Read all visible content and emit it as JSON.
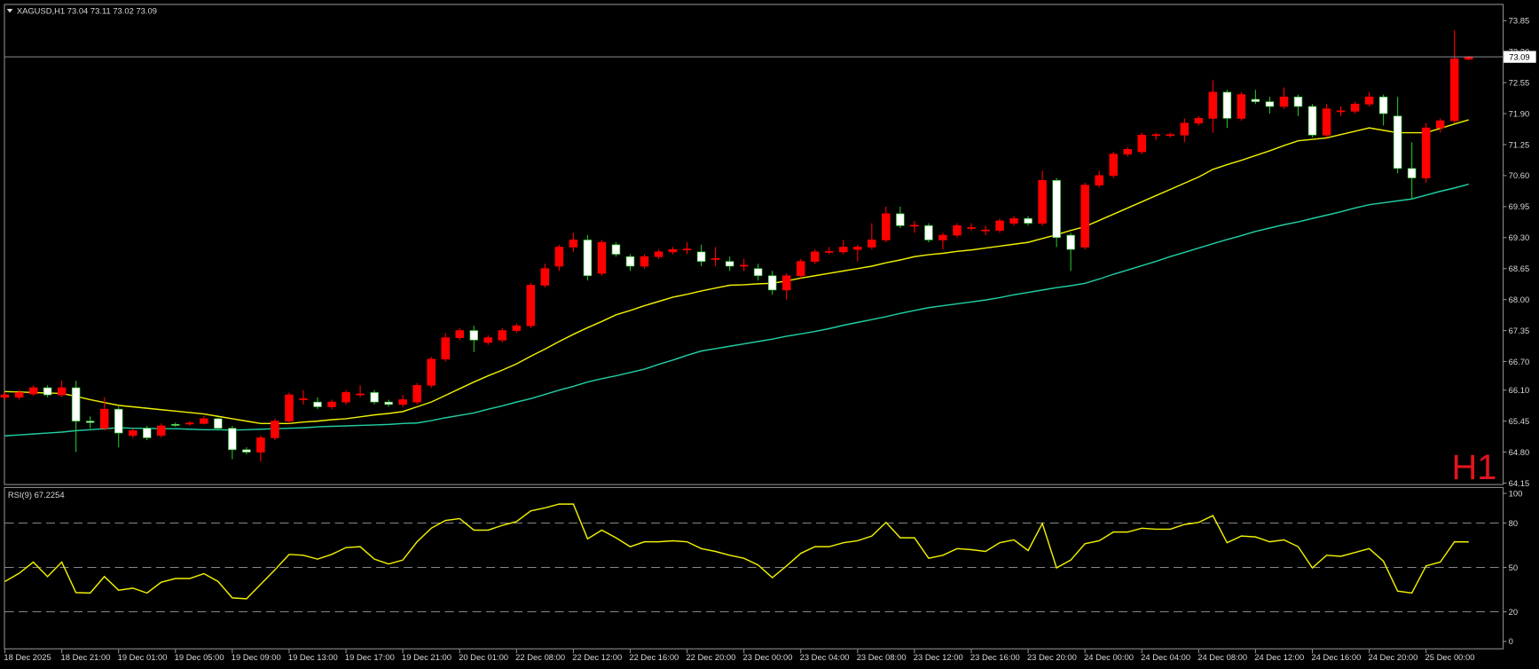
{
  "chart_data": [
    {
      "type": "candlestick",
      "title": "XAGUSD,H1  73.04 73.11 73.02 73.09",
      "timeframe_label": "H1",
      "categories": [
        "18 Dec 2025",
        null,
        null,
        null,
        "18 Dec 21:00",
        null,
        null,
        null,
        "19 Dec 01:00",
        null,
        null,
        null,
        "19 Dec 05:00",
        null,
        null,
        null,
        "19 Dec 09:00",
        null,
        null,
        null,
        "19 Dec 13:00",
        null,
        null,
        null,
        "19 Dec 17:00",
        null,
        null,
        null,
        "19 Dec 21:00",
        null,
        null,
        null,
        "20 Dec 01:00",
        null,
        null,
        null,
        "22 Dec 08:00",
        null,
        null,
        null,
        "22 Dec 12:00",
        null,
        null,
        null,
        "22 Dec 16:00",
        null,
        null,
        null,
        "22 Dec 20:00",
        null,
        null,
        null,
        "23 Dec 00:00",
        null,
        null,
        null,
        "23 Dec 04:00",
        null,
        null,
        null,
        "23 Dec 08:00",
        null,
        null,
        null,
        "23 Dec 12:00",
        null,
        null,
        null,
        "23 Dec 16:00",
        null,
        null,
        null,
        "23 Dec 20:00",
        null,
        null,
        null,
        "24 Dec 00:00",
        null,
        null,
        null,
        "24 Dec 04:00",
        null,
        null,
        null,
        "24 Dec 08:00",
        null,
        null,
        null,
        "24 Dec 12:00",
        null,
        null,
        null,
        "24 Dec 16:00",
        null,
        null,
        null,
        "24 Dec 20:00",
        null,
        null,
        null,
        "25 Dec 00:00",
        null,
        null,
        null
      ],
      "open": [
        65.95,
        65.95,
        66.02,
        66.15,
        66.0,
        66.15,
        65.45,
        65.3,
        65.7,
        65.15,
        65.3,
        65.15,
        65.38,
        65.4,
        65.4,
        65.5,
        65.3,
        64.85,
        64.8,
        65.1,
        65.45,
        65.9,
        65.85,
        65.75,
        65.85,
        66.0,
        66.05,
        65.85,
        65.8,
        65.85,
        66.2,
        66.75,
        67.2,
        67.35,
        67.1,
        67.15,
        67.35,
        67.45,
        68.3,
        68.7,
        69.1,
        69.25,
        68.55,
        69.15,
        68.9,
        68.7,
        68.9,
        69.0,
        69.04,
        69.0,
        68.84,
        68.8,
        68.7,
        68.65,
        68.5,
        68.2,
        68.5,
        68.8,
        68.99,
        69.0,
        69.05,
        69.1,
        69.25,
        69.8,
        69.54,
        69.55,
        69.25,
        69.35,
        69.49,
        69.44,
        69.45,
        69.6,
        69.7,
        69.6,
        70.5,
        69.35,
        69.1,
        70.4,
        70.6,
        71.05,
        71.1,
        71.44,
        71.44,
        71.45,
        71.7,
        71.8,
        72.35,
        71.8,
        72.2,
        72.15,
        72.05,
        72.25,
        72.05,
        71.45,
        71.94,
        71.95,
        72.1,
        72.25,
        71.85,
        70.75,
        70.55,
        71.6,
        71.75,
        73.04
      ],
      "high": [
        66.05,
        66.1,
        66.2,
        66.2,
        66.3,
        66.3,
        65.55,
        65.95,
        65.75,
        65.3,
        65.35,
        65.4,
        65.42,
        65.45,
        65.55,
        65.52,
        65.35,
        64.9,
        65.15,
        65.5,
        66.05,
        66.1,
        65.95,
        65.9,
        66.1,
        66.2,
        66.1,
        65.9,
        66.0,
        66.25,
        66.8,
        67.3,
        67.4,
        67.45,
        67.25,
        67.4,
        67.5,
        68.35,
        68.75,
        69.15,
        69.4,
        69.35,
        69.25,
        69.2,
        68.95,
        68.95,
        69.05,
        69.1,
        69.2,
        69.15,
        69.1,
        68.9,
        68.85,
        68.75,
        68.6,
        68.55,
        68.85,
        69.05,
        69.1,
        69.25,
        69.15,
        69.6,
        69.95,
        69.95,
        69.65,
        69.6,
        69.4,
        69.6,
        69.6,
        69.55,
        69.7,
        69.75,
        69.75,
        70.7,
        70.55,
        69.4,
        70.45,
        70.7,
        71.1,
        71.2,
        71.5,
        71.5,
        71.5,
        71.8,
        71.85,
        72.6,
        72.4,
        72.35,
        72.4,
        72.25,
        72.45,
        72.3,
        72.1,
        72.1,
        72.05,
        72.15,
        72.35,
        72.3,
        72.25,
        71.3,
        71.7,
        71.8,
        73.65,
        73.11
      ],
      "low": [
        65.9,
        65.9,
        65.98,
        65.95,
        65.95,
        64.8,
        65.3,
        65.25,
        64.9,
        65.1,
        65.05,
        65.1,
        65.33,
        65.35,
        65.38,
        65.25,
        64.65,
        64.75,
        64.6,
        65.05,
        65.4,
        65.8,
        65.7,
        65.7,
        65.8,
        65.95,
        65.8,
        65.75,
        65.75,
        65.8,
        66.15,
        66.7,
        67.15,
        66.9,
        67.05,
        67.1,
        67.3,
        67.4,
        68.25,
        68.6,
        69.0,
        68.4,
        68.5,
        68.9,
        68.6,
        68.65,
        68.85,
        68.95,
        68.95,
        68.7,
        68.7,
        68.6,
        68.6,
        68.4,
        68.1,
        68.0,
        68.45,
        68.75,
        68.95,
        68.95,
        68.8,
        69.05,
        69.2,
        69.5,
        69.4,
        69.2,
        69.05,
        69.3,
        69.45,
        69.35,
        69.4,
        69.55,
        69.55,
        69.55,
        69.1,
        68.6,
        69.05,
        70.35,
        70.55,
        71.0,
        71.05,
        71.35,
        71.4,
        71.3,
        71.65,
        71.5,
        71.6,
        71.75,
        72.1,
        71.9,
        72.0,
        71.85,
        71.4,
        71.4,
        71.85,
        71.9,
        72.05,
        71.65,
        70.65,
        70.1,
        70.45,
        71.5,
        71.7,
        73.02
      ],
      "close": [
        66.0,
        66.05,
        66.15,
        66.0,
        66.15,
        65.45,
        65.42,
        65.7,
        65.2,
        65.25,
        65.1,
        65.35,
        65.37,
        65.41,
        65.5,
        65.3,
        64.85,
        64.8,
        65.1,
        65.45,
        66.0,
        65.92,
        65.75,
        65.85,
        66.05,
        66.02,
        65.85,
        65.8,
        65.9,
        66.2,
        66.75,
        67.2,
        67.35,
        67.15,
        67.2,
        67.35,
        67.45,
        68.3,
        68.65,
        69.1,
        69.25,
        68.5,
        69.2,
        68.95,
        68.7,
        68.9,
        69.0,
        69.05,
        69.06,
        68.8,
        68.86,
        68.7,
        68.72,
        68.5,
        68.2,
        68.5,
        68.8,
        69.0,
        69.01,
        69.1,
        69.1,
        69.25,
        69.8,
        69.55,
        69.56,
        69.25,
        69.35,
        69.55,
        69.51,
        69.46,
        69.65,
        69.7,
        69.6,
        70.5,
        69.3,
        69.05,
        70.4,
        70.6,
        71.05,
        71.15,
        71.45,
        71.46,
        71.46,
        71.7,
        71.8,
        72.35,
        71.8,
        72.3,
        72.15,
        72.05,
        72.25,
        72.05,
        71.45,
        72.0,
        71.96,
        72.1,
        72.25,
        71.9,
        70.75,
        70.55,
        71.6,
        71.75,
        73.05,
        73.09
      ],
      "lines": [
        {
          "color": "#f0f000",
          "values": [
            66.07,
            66.06,
            66.05,
            66.04,
            66.03,
            65.97,
            65.9,
            65.84,
            65.78,
            65.75,
            65.72,
            65.69,
            65.66,
            65.63,
            65.6,
            65.55,
            65.5,
            65.45,
            65.4,
            65.4,
            65.4,
            65.43,
            65.45,
            65.48,
            65.5,
            65.54,
            65.58,
            65.61,
            65.65,
            65.75,
            65.85,
            65.99,
            66.13,
            66.27,
            66.4,
            66.52,
            66.65,
            66.81,
            66.96,
            67.12,
            67.27,
            67.41,
            67.54,
            67.68,
            67.77,
            67.87,
            67.96,
            68.05,
            68.11,
            68.18,
            68.24,
            68.3,
            68.31,
            68.33,
            68.34,
            68.39,
            68.45,
            68.5,
            68.55,
            68.6,
            68.65,
            68.7,
            68.77,
            68.83,
            68.9,
            68.94,
            68.97,
            69.01,
            69.04,
            69.08,
            69.12,
            69.16,
            69.2,
            69.28,
            69.36,
            69.45,
            69.53,
            69.66,
            69.79,
            69.92,
            70.05,
            70.18,
            70.31,
            70.44,
            70.57,
            70.73,
            70.83,
            70.92,
            71.02,
            71.12,
            71.23,
            71.33,
            71.36,
            71.39,
            71.46,
            71.53,
            71.6,
            71.55,
            71.5,
            71.5,
            71.5,
            71.59,
            71.68,
            71.77
          ]
        },
        {
          "color": "#1fcfa5",
          "values": [
            65.14,
            65.16,
            65.18,
            65.2,
            65.22,
            65.25,
            65.27,
            65.29,
            65.31,
            65.3,
            65.3,
            65.29,
            65.29,
            65.28,
            65.27,
            65.27,
            65.26,
            65.27,
            65.28,
            65.29,
            65.3,
            65.31,
            65.33,
            65.34,
            65.35,
            65.36,
            65.37,
            65.38,
            65.4,
            65.41,
            65.46,
            65.52,
            65.57,
            65.62,
            65.7,
            65.77,
            65.85,
            65.92,
            66.01,
            66.1,
            66.18,
            66.27,
            66.34,
            66.4,
            66.47,
            66.54,
            66.64,
            66.73,
            66.83,
            66.92,
            66.97,
            67.02,
            67.07,
            67.12,
            67.17,
            67.23,
            67.28,
            67.33,
            67.39,
            67.46,
            67.52,
            67.58,
            67.64,
            67.71,
            67.77,
            67.83,
            67.87,
            67.91,
            67.95,
            67.99,
            68.04,
            68.1,
            68.15,
            68.2,
            68.25,
            68.29,
            68.34,
            68.43,
            68.53,
            68.62,
            68.71,
            68.8,
            68.9,
            68.99,
            69.08,
            69.17,
            69.26,
            69.34,
            69.43,
            69.5,
            69.57,
            69.63,
            69.7,
            69.77,
            69.84,
            69.92,
            69.99,
            70.03,
            70.07,
            70.11,
            70.19,
            70.27,
            70.34,
            70.42
          ]
        }
      ],
      "last_price": 73.09,
      "up_color": "#ff0000",
      "down_color": "#ffffff",
      "up_wick_color": "#ff0000",
      "down_wick_color": "#22c022",
      "ylim": [
        64.13,
        74.18
      ],
      "yticks": [
        73.85,
        {
          "value": 73.2,
          "label": "73.20"
        },
        72.55,
        {
          "value": 71.9,
          "label": "71.90"
        },
        71.25,
        {
          "value": 70.6,
          "label": "70.60"
        },
        69.95,
        {
          "value": 69.3,
          "label": "69.30"
        },
        68.65,
        {
          "value": 68.0,
          "label": "68.00"
        },
        67.35,
        {
          "value": 66.7,
          "label": "66.70"
        },
        {
          "value": 66.1,
          "label": "66.10"
        },
        65.45,
        {
          "value": 64.8,
          "label": "64.80"
        },
        64.15
      ]
    },
    {
      "type": "line",
      "title": "RSI(9) 67.2254",
      "color": "#f0f000",
      "values": [
        40.5,
        46,
        53.6,
        43.8,
        53.6,
        33,
        32.7,
        43.8,
        34.6,
        36,
        32.7,
        40,
        42.5,
        42.5,
        45.8,
        40.5,
        29.4,
        28.8,
        38.6,
        48.4,
        58.8,
        58.2,
        55.6,
        58.8,
        63.4,
        64,
        55.6,
        52.3,
        55,
        67.3,
        76.5,
        81.7,
        83,
        75.2,
        75.2,
        78.4,
        81,
        88.2,
        90.2,
        92.8,
        92.8,
        69.3,
        75.2,
        70,
        64,
        67.3,
        67.3,
        68,
        67.3,
        62.7,
        60.8,
        58.2,
        56.2,
        51.6,
        43.1,
        51,
        59.5,
        64,
        64,
        66.7,
        68,
        71.2,
        80.4,
        70,
        70,
        56.2,
        58.2,
        62.7,
        62,
        60.8,
        66.7,
        68.6,
        61.4,
        79.7,
        49.7,
        55,
        66,
        68,
        73.9,
        73.9,
        76.5,
        75.8,
        75.8,
        79,
        80.4,
        85,
        66.7,
        71.2,
        70.6,
        67.3,
        68.6,
        64,
        49.7,
        58.2,
        57.5,
        60.1,
        62.7,
        54.2,
        34,
        32.7,
        51,
        53.6,
        67.3,
        67.2254
      ],
      "ylim": [
        -4,
        103
      ],
      "yticks": [
        100,
        80,
        50,
        20,
        0
      ],
      "levels": [
        80,
        50,
        20
      ]
    }
  ]
}
